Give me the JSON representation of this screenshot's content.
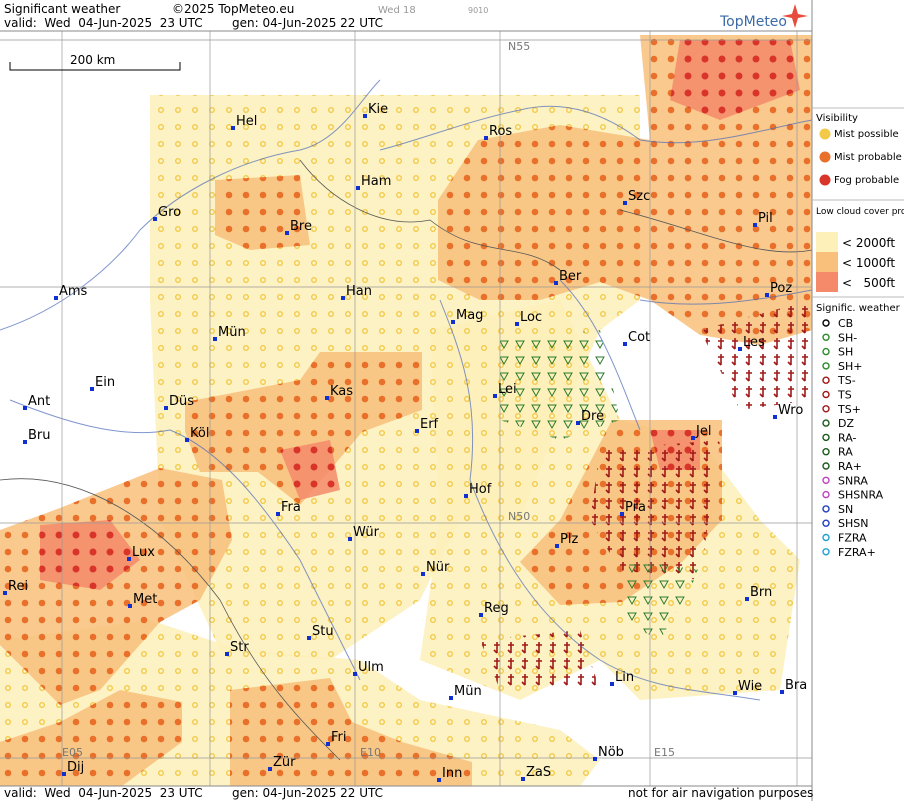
{
  "header": {
    "title": "Significant weather",
    "copyright": "©2025 TopMeteo.eu",
    "run": "Wed 18",
    "code": "9010",
    "valid": "valid:  Wed  04-Jun-2025  23 UTC",
    "generated": "gen: 04-Jun-2025 22 UTC",
    "logo": "TopMeteo"
  },
  "map": {
    "scale": "200 km",
    "grid_labels": [
      "N55",
      "N50",
      "E05",
      "E10",
      "E15"
    ],
    "cities": [
      "Hel",
      "Kie",
      "Ros",
      "Ham",
      "Gro",
      "Bre",
      "Szc",
      "Pil",
      "Ams",
      "Han",
      "Ber",
      "Poz",
      "Mag",
      "Loc",
      "Mün",
      "Cot",
      "Les",
      "Ein",
      "Lei",
      "Ant",
      "Düs",
      "Kas",
      "Dre",
      "Wro",
      "Bru",
      "Köl",
      "Erf",
      "Jel",
      "Hof",
      "Fra",
      "Pra",
      "Lux",
      "Wür",
      "Plz",
      "Rei",
      "Met",
      "Nür",
      "Brn",
      "Reg",
      "Stu",
      "Str",
      "Lin",
      "Ulm",
      "Wie",
      "Bra",
      "Mün",
      "Fri",
      "Dij",
      "Zür",
      "Inn",
      "ZaS",
      "Nöb"
    ]
  },
  "legend": {
    "visibility": {
      "title": "Visibility",
      "items": [
        "Mist possible",
        "Mist probable",
        "Fog probable"
      ]
    },
    "low_cloud": {
      "title": "Low cloud cover probable",
      "items": [
        "< 2000ft",
        "< 1000ft",
        "<   500ft"
      ]
    },
    "weather": {
      "title": "Signific. weather",
      "items": [
        "CB",
        "SH-",
        "SH",
        "SH+",
        "TS-",
        "TS",
        "TS+",
        "DZ",
        "RA-",
        "RA",
        "RA+",
        "SNRA",
        "SHSNRA",
        "SN",
        "SHSN",
        "FZRA",
        "FZRA+"
      ]
    }
  },
  "footer": {
    "valid": "valid:  Wed  04-Jun-2025  23 UTC",
    "generated": "gen: 04-Jun-2025 22 UTC",
    "note": "not for air navigation purposes"
  }
}
